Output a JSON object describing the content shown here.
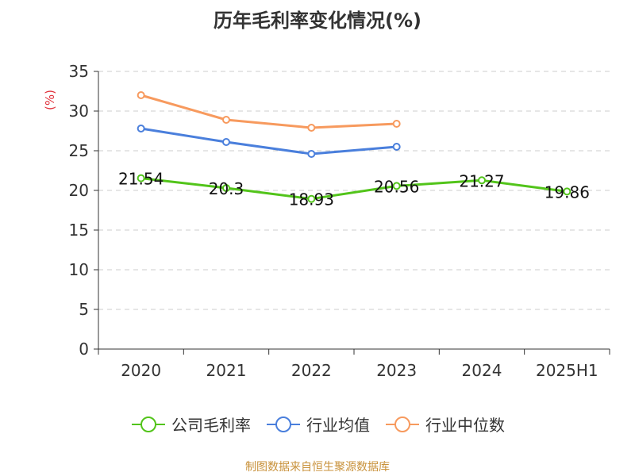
{
  "title": "历年毛利率变化情况(%)",
  "source_label": "制图数据来自恒生聚源数据库",
  "y_unit_label": "(%)",
  "colors": {
    "company": "#52c41a",
    "industry_avg": "#4a7fdc",
    "industry_median": "#f79a5e",
    "axis": "#333333",
    "grid": "#cccccc",
    "unit_label": "#e0303a"
  },
  "chart_data": {
    "type": "line",
    "title": "历年毛利率变化情况(%)",
    "ylabel": "(%)",
    "xlabel": "",
    "categories": [
      "2020",
      "2021",
      "2022",
      "2023",
      "2024",
      "2025H1"
    ],
    "ylim": [
      0,
      35
    ],
    "yticks": [
      0,
      5,
      10,
      15,
      20,
      25,
      30,
      35
    ],
    "grid": true,
    "legend_position": "bottom",
    "series": [
      {
        "name": "公司毛利率",
        "key": "company",
        "values": [
          21.54,
          20.3,
          18.93,
          20.56,
          21.27,
          19.86
        ],
        "labels": [
          "21.54",
          "20.3",
          "18.93",
          "20.56",
          "21.27",
          "19.86"
        ],
        "show_labels": true
      },
      {
        "name": "行业均值",
        "key": "industry_avg",
        "values": [
          27.8,
          26.1,
          24.6,
          25.5,
          null,
          null
        ],
        "show_labels": false
      },
      {
        "name": "行业中位数",
        "key": "industry_median",
        "values": [
          32.0,
          28.9,
          27.9,
          28.4,
          null,
          null
        ],
        "show_labels": false
      }
    ]
  }
}
